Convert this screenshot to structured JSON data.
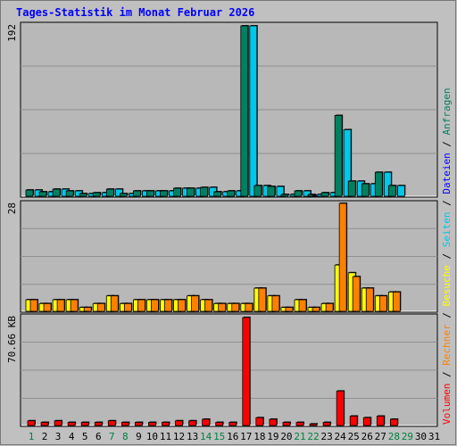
{
  "title": "Tages-Statistik im Monat Februar 2026",
  "colors": {
    "background": "#c0c0c0",
    "panel": "#b8b8b8",
    "grid": "#909090",
    "anfragen": "#008060",
    "dateien": "#0000ff",
    "seiten": "#00c8e8",
    "besuche": "#ffff00",
    "rechner": "#ff8000",
    "volumen": "#ff0000",
    "weekday": "#000000",
    "weekend": "#008040"
  },
  "legend": [
    {
      "label": "Anfragen",
      "color": "#008060"
    },
    {
      "label": "Dateien",
      "color": "#0000ff"
    },
    {
      "label": "Seiten",
      "color": "#00c8e8"
    },
    {
      "label": "Besuche",
      "color": "#ffff00"
    },
    {
      "label": "Rechner",
      "color": "#ff8000"
    },
    {
      "label": "Volumen",
      "color": "#ff0000"
    }
  ],
  "legend_separator": "/",
  "chart_data": [
    {
      "type": "bar",
      "panel": "top",
      "ymax_label": "192",
      "ylim": [
        0,
        192
      ],
      "categories": [
        "1",
        "2",
        "3",
        "4",
        "5",
        "6",
        "7",
        "8",
        "9",
        "10",
        "11",
        "12",
        "13",
        "14",
        "15",
        "16",
        "17",
        "18",
        "19",
        "20",
        "21",
        "22",
        "23",
        "24",
        "25",
        "26",
        "27",
        "28",
        "29",
        "30",
        "31"
      ],
      "series": [
        {
          "name": "Anfragen",
          "values": [
            7,
            5,
            8,
            6,
            3,
            4,
            8,
            3,
            6,
            6,
            6,
            9,
            9,
            10,
            5,
            6,
            192,
            12,
            11,
            2,
            6,
            2,
            4,
            91,
            17,
            14,
            27,
            12,
            null,
            null,
            null
          ]
        },
        {
          "name": "Dateien",
          "values": [
            0,
            0,
            0,
            0,
            0,
            0,
            0,
            0,
            0,
            0,
            0,
            0,
            0,
            0,
            0,
            0,
            0,
            0,
            0,
            0,
            0,
            1,
            0,
            0,
            0,
            0,
            0,
            0,
            null,
            null,
            null
          ]
        },
        {
          "name": "Seiten",
          "values": [
            7,
            5,
            8,
            6,
            3,
            4,
            8,
            3,
            6,
            6,
            6,
            9,
            9,
            10,
            5,
            6,
            192,
            12,
            11,
            2,
            6,
            2,
            4,
            75,
            17,
            14,
            27,
            12,
            null,
            null,
            null
          ]
        }
      ]
    },
    {
      "type": "bar",
      "panel": "middle",
      "ymax_label": "28",
      "ylim": [
        0,
        28
      ],
      "categories": [
        "1",
        "2",
        "3",
        "4",
        "5",
        "6",
        "7",
        "8",
        "9",
        "10",
        "11",
        "12",
        "13",
        "14",
        "15",
        "16",
        "17",
        "18",
        "19",
        "20",
        "21",
        "22",
        "23",
        "24",
        "25",
        "26",
        "27",
        "28",
        "29",
        "30",
        "31"
      ],
      "series": [
        {
          "name": "Besuche",
          "values": [
            3,
            2,
            3,
            3,
            1,
            2,
            4,
            2,
            3,
            3,
            3,
            3,
            4,
            3,
            2,
            2,
            2,
            6,
            4,
            1,
            3,
            1,
            2,
            12,
            10,
            6,
            4,
            5,
            null,
            null,
            null
          ]
        },
        {
          "name": "Rechner",
          "values": [
            3,
            2,
            3,
            3,
            1,
            2,
            4,
            2,
            3,
            3,
            3,
            3,
            4,
            3,
            2,
            2,
            2,
            6,
            4,
            1,
            3,
            1,
            2,
            28,
            9,
            6,
            4,
            5,
            null,
            null,
            null
          ]
        }
      ]
    },
    {
      "type": "bar",
      "panel": "bottom",
      "ymax_label": "70.66 KB",
      "ylim": [
        0,
        70.66
      ],
      "unit": "KB",
      "categories": [
        "1",
        "2",
        "3",
        "4",
        "5",
        "6",
        "7",
        "8",
        "9",
        "10",
        "11",
        "12",
        "13",
        "14",
        "15",
        "16",
        "17",
        "18",
        "19",
        "20",
        "21",
        "22",
        "23",
        "24",
        "25",
        "26",
        "27",
        "28",
        "29",
        "30",
        "31"
      ],
      "series": [
        {
          "name": "Volumen",
          "values": [
            3,
            2,
            3,
            2,
            2,
            2,
            3,
            2,
            2,
            2,
            2,
            3,
            3,
            4,
            2,
            2,
            69,
            5,
            4,
            2,
            2,
            1,
            2,
            22,
            6,
            5,
            6,
            4,
            null,
            null,
            null
          ]
        }
      ]
    }
  ],
  "weekend_days": [
    "1",
    "7",
    "8",
    "14",
    "15",
    "21",
    "22",
    "28",
    "29"
  ]
}
